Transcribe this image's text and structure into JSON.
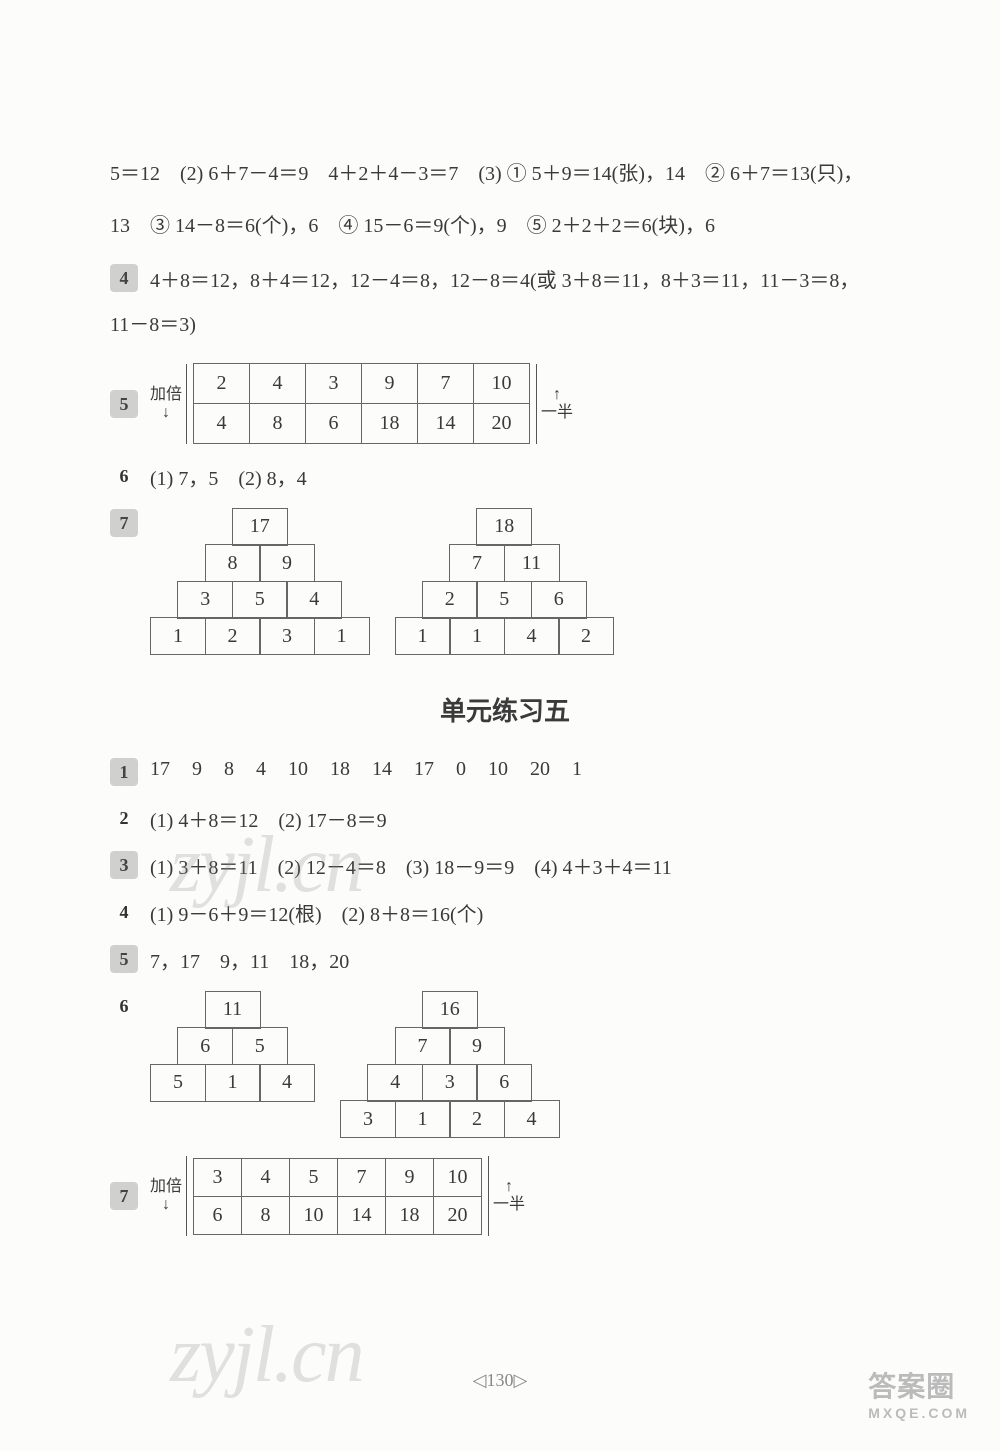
{
  "topLines": [
    "5＝12　(2) 6＋7－4＝9　4＋2＋4－3＝7　(3) ① 5＋9＝14(张)，14　② 6＋7＝13(只)，",
    "13　③ 14－8＝6(个)，6　④ 15－6＝9(个)，9　⑤ 2＋2＋2＝6(块)，6"
  ],
  "q4": "4＋8＝12，8＋4＝12，12－4＝8，12－8＝4(或 3＋8＝11，8＋3＝11，11－3＝8，",
  "q4b": "11－8＝3)",
  "q5": {
    "leftLabel": "加倍",
    "rightLabel": "一半",
    "rows": [
      [
        "2",
        "4",
        "3",
        "9",
        "7",
        "10"
      ],
      [
        "4",
        "8",
        "6",
        "18",
        "14",
        "20"
      ]
    ]
  },
  "q6": "(1) 7，5　(2) 8，4",
  "q7": {
    "left": [
      [
        "17"
      ],
      [
        "8",
        "9"
      ],
      [
        "3",
        "5",
        "4"
      ],
      [
        "1",
        "2",
        "3",
        "1"
      ]
    ],
    "right": [
      [
        "18"
      ],
      [
        "7",
        "11"
      ],
      [
        "2",
        "5",
        "6"
      ],
      [
        "1",
        "1",
        "4",
        "2"
      ]
    ]
  },
  "sectionTitle": "单元练习五",
  "p2_q1": [
    "17",
    "9",
    "8",
    "4",
    "10",
    "18",
    "14",
    "17",
    "0",
    "10",
    "20",
    "1"
  ],
  "p2_q2": "(1) 4＋8＝12　(2) 17－8＝9",
  "p2_q3": "(1) 3＋8＝11　(2) 12－4＝8　(3) 18－9＝9　(4) 4＋3＋4＝11",
  "p2_q4": "(1) 9－6＋9＝12(根)　(2) 8＋8＝16(个)",
  "p2_q5": "7，17　9，11　18，20",
  "p2_q6": {
    "left": [
      [
        "11"
      ],
      [
        "6",
        "5"
      ],
      [
        "5",
        "1",
        "4"
      ]
    ],
    "right": [
      [
        "16"
      ],
      [
        "7",
        "9"
      ],
      [
        "4",
        "3",
        "6"
      ],
      [
        "3",
        "1",
        "2",
        "4"
      ]
    ]
  },
  "p2_q7": {
    "leftLabel": "加倍",
    "rightLabel": "一半",
    "rows": [
      [
        "3",
        "4",
        "5",
        "7",
        "9",
        "10"
      ],
      [
        "6",
        "8",
        "10",
        "14",
        "18",
        "20"
      ]
    ]
  },
  "pageNum": "130",
  "watermark": "zyjl.cn",
  "footer": {
    "main": "答案圈",
    "sub": "MXQE.COM"
  }
}
